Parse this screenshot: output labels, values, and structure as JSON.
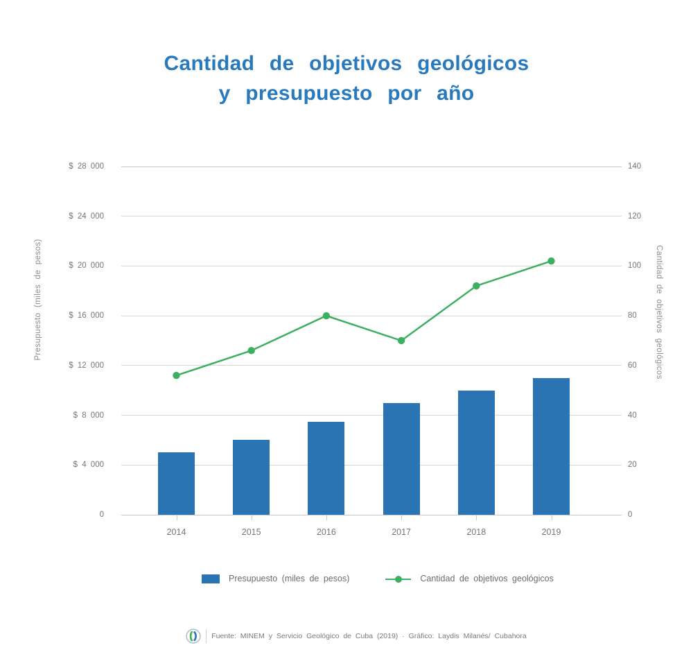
{
  "title": {
    "line1": "Cantidad de objetivos geológicos",
    "line2": "y presupuesto por año"
  },
  "chart_data": {
    "type": "bar+line",
    "categories": [
      "2014",
      "2015",
      "2016",
      "2017",
      "2018",
      "2019"
    ],
    "series": [
      {
        "name": "Presupuesto (miles de pesos)",
        "type": "bar",
        "axis": "left",
        "color": "#2b74b3",
        "values": [
          5000,
          6000,
          7500,
          9000,
          10000,
          11000
        ]
      },
      {
        "name": "Cantidad de objetivos geológicos",
        "type": "line",
        "axis": "right",
        "color": "#3daf60",
        "values": [
          56,
          66,
          80,
          70,
          92,
          102
        ]
      }
    ],
    "left_axis": {
      "title": "Presupuesto (miles de pesos)",
      "min": 0,
      "max": 28000,
      "step": 4000,
      "tick_labels": [
        "0",
        "$ 4 000",
        "$ 8 000",
        "$ 12 000",
        "$ 16 000",
        "$ 20 000",
        "$ 24 000",
        "$ 28 000"
      ]
    },
    "right_axis": {
      "title": "Cantidad de objetivos geológicos",
      "min": 0,
      "max": 140,
      "step": 20,
      "tick_labels": [
        "0",
        "20",
        "40",
        "60",
        "80",
        "100",
        "120",
        "140"
      ]
    },
    "grid": true,
    "legend_position": "bottom"
  },
  "legend": {
    "items": [
      {
        "label": "Presupuesto (miles de pesos)",
        "swatch": "bar",
        "color": "#2b74b3"
      },
      {
        "label": "Cantidad de objetivos geológicos",
        "swatch": "line",
        "color": "#3daf60"
      }
    ]
  },
  "footer": {
    "logo": "cubahora-logo",
    "text": "Fuente: MINEM y Servicio Geológico de Cuba (2019) · Gráfico: Laydis Milanés/ Cubahora"
  },
  "colors": {
    "title": "#2979bd",
    "bar": "#2b74b3",
    "line": "#3daf60",
    "gridline": "#d6d6d6",
    "axis_text": "#767676"
  }
}
